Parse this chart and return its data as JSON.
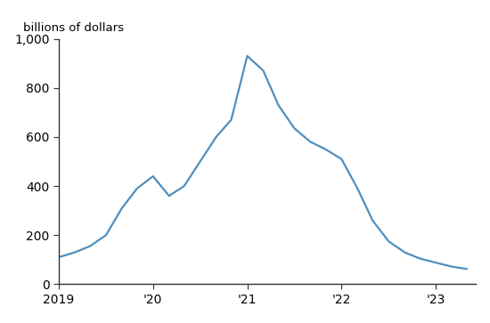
{
  "x": [
    2019.0,
    2019.17,
    2019.33,
    2019.5,
    2019.67,
    2019.83,
    2020.0,
    2020.17,
    2020.33,
    2020.5,
    2020.67,
    2020.83,
    2021.0,
    2021.17,
    2021.33,
    2021.5,
    2021.67,
    2021.83,
    2022.0,
    2022.17,
    2022.33,
    2022.5,
    2022.67,
    2022.83,
    2023.0,
    2023.17,
    2023.33
  ],
  "y": [
    110,
    130,
    155,
    200,
    310,
    390,
    440,
    360,
    400,
    500,
    600,
    670,
    930,
    870,
    730,
    635,
    580,
    550,
    510,
    390,
    260,
    175,
    130,
    105,
    88,
    72,
    62
  ],
  "line_color": "#4f8fc0",
  "line_width": 1.6,
  "ylabel": "billions of dollars",
  "ylim": [
    0,
    1000
  ],
  "yticks": [
    0,
    200,
    400,
    600,
    800,
    1000
  ],
  "xlim": [
    2019.0,
    2023.42
  ],
  "xtick_positions": [
    2019.0,
    2020.0,
    2021.0,
    2022.0,
    2023.0
  ],
  "xtick_labels": [
    "2019",
    "'20",
    "'21",
    "'22",
    "'23"
  ],
  "background_color": "#ffffff",
  "ylabel_fontsize": 9.5,
  "tick_fontsize": 10,
  "spine_color": "#333333"
}
